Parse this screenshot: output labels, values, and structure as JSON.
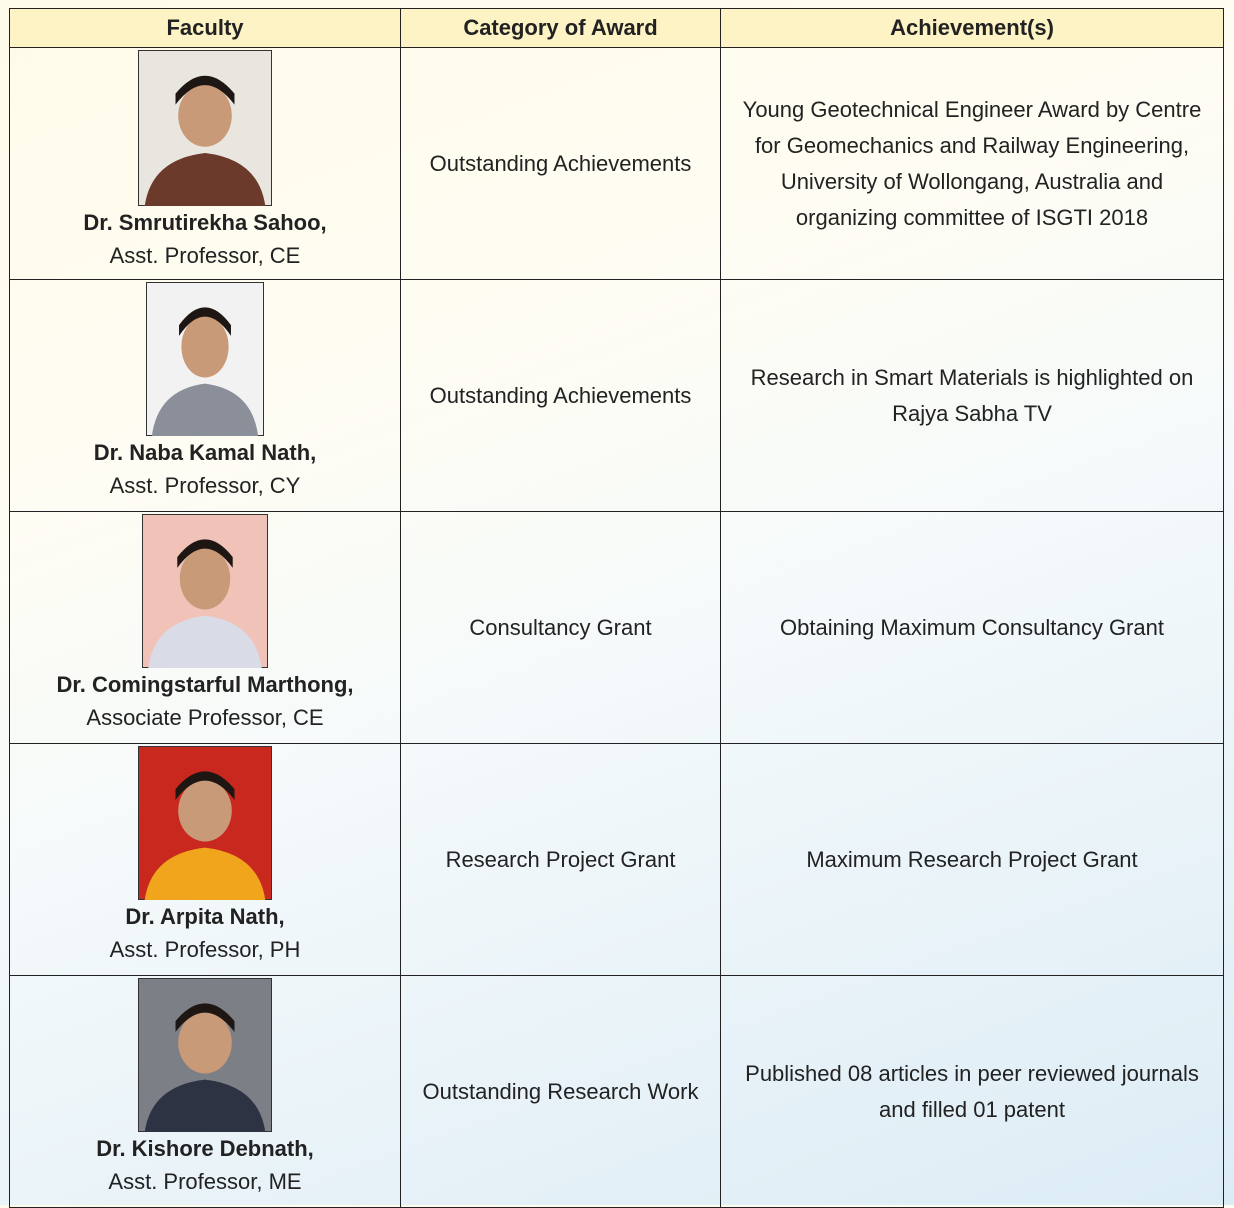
{
  "table": {
    "columns": [
      "Faculty",
      "Category of Award",
      "Achievement(s)"
    ],
    "rows": [
      {
        "name": "Dr. Smrutirekha Sahoo,",
        "designation": "Asst. Professor, CE",
        "category": "Outstanding Achievements",
        "achievement": "Young Geotechnical Engineer Award by Centre for Geomechanics and Railway Engineering, University of Wollongang, Australia and organizing committee of ISGTI 2018"
      },
      {
        "name": "Dr. Naba Kamal Nath,",
        "designation": "Asst. Professor, CY",
        "category": "Outstanding Achievements",
        "achievement": "Research in Smart Materials is highlighted on Rajya Sabha TV"
      },
      {
        "name": "Dr. Comingstarful Marthong,",
        "designation": "Associate Professor, CE",
        "category": "Consultancy Grant",
        "achievement": "Obtaining Maximum Consultancy Grant"
      },
      {
        "name": "Dr. Arpita Nath,",
        "designation": "Asst. Professor, PH",
        "category": "Research Project Grant",
        "achievement": "Maximum Research Project Grant"
      },
      {
        "name": "Dr. Kishore Debnath,",
        "designation": "Asst. Professor, ME",
        "category": "Outstanding Research Work",
        "achievement": "Published 08 articles in peer reviewed journals and filled 01 patent"
      }
    ]
  }
}
